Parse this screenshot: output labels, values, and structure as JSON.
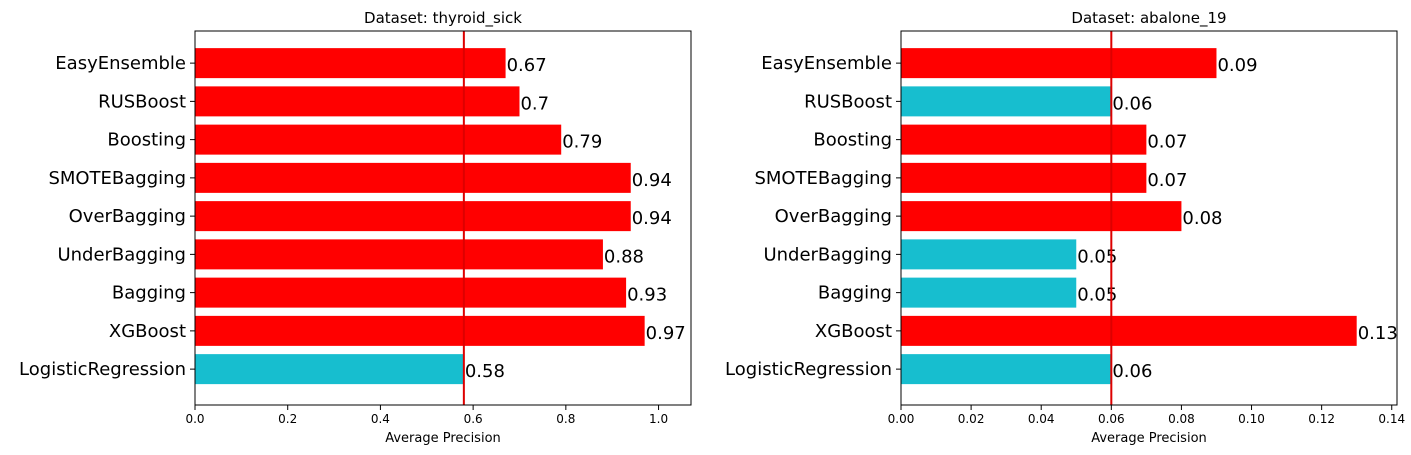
{
  "chart_data": [
    {
      "type": "bar",
      "orientation": "horizontal",
      "title": "Dataset: thyroid_sick",
      "xlabel": "Average Precision",
      "ylabel": "",
      "xlim": [
        0,
        1.07
      ],
      "xticks": [
        "0.0",
        "0.2",
        "0.4",
        "0.6",
        "0.8",
        "1.0"
      ],
      "xtick_values": [
        0,
        0.2,
        0.4,
        0.6,
        0.8,
        1.0
      ],
      "categories": [
        "EasyEnsemble",
        "RUSBoost",
        "Boosting",
        "SMOTEBagging",
        "OverBagging",
        "UnderBagging",
        "Bagging",
        "XGBoost",
        "LogisticRegression"
      ],
      "values": [
        0.67,
        0.7,
        0.79,
        0.94,
        0.94,
        0.88,
        0.93,
        0.97,
        0.58
      ],
      "value_labels": [
        "0.67",
        "0.7",
        "0.79",
        "0.94",
        "0.94",
        "0.88",
        "0.93",
        "0.97",
        "0.58"
      ],
      "colors": [
        "#ff0000",
        "#ff0000",
        "#ff0000",
        "#ff0000",
        "#ff0000",
        "#ff0000",
        "#ff0000",
        "#ff0000",
        "#17becf"
      ],
      "reference_line": 0.58,
      "reference_color": "#dd0000",
      "grid": false,
      "legend": "none"
    },
    {
      "type": "bar",
      "orientation": "horizontal",
      "title": "Dataset: abalone_19",
      "xlabel": "Average Precision",
      "ylabel": "",
      "xlim": [
        0,
        0.1415
      ],
      "xticks": [
        "0.00",
        "0.02",
        "0.04",
        "0.06",
        "0.08",
        "0.10",
        "0.12",
        "0.14"
      ],
      "xtick_values": [
        0,
        0.02,
        0.04,
        0.06,
        0.08,
        0.1,
        0.12,
        0.14
      ],
      "categories": [
        "EasyEnsemble",
        "RUSBoost",
        "Boosting",
        "SMOTEBagging",
        "OverBagging",
        "UnderBagging",
        "Bagging",
        "XGBoost",
        "LogisticRegression"
      ],
      "values": [
        0.09,
        0.06,
        0.07,
        0.07,
        0.08,
        0.05,
        0.05,
        0.13,
        0.06
      ],
      "value_labels": [
        "0.09",
        "0.06",
        "0.07",
        "0.07",
        "0.08",
        "0.05",
        "0.05",
        "0.13",
        "0.06"
      ],
      "colors": [
        "#ff0000",
        "#17becf",
        "#ff0000",
        "#ff0000",
        "#ff0000",
        "#17becf",
        "#17becf",
        "#ff0000",
        "#17becf"
      ],
      "reference_line": 0.06,
      "reference_color": "#dd0000",
      "grid": false,
      "legend": "none"
    }
  ]
}
